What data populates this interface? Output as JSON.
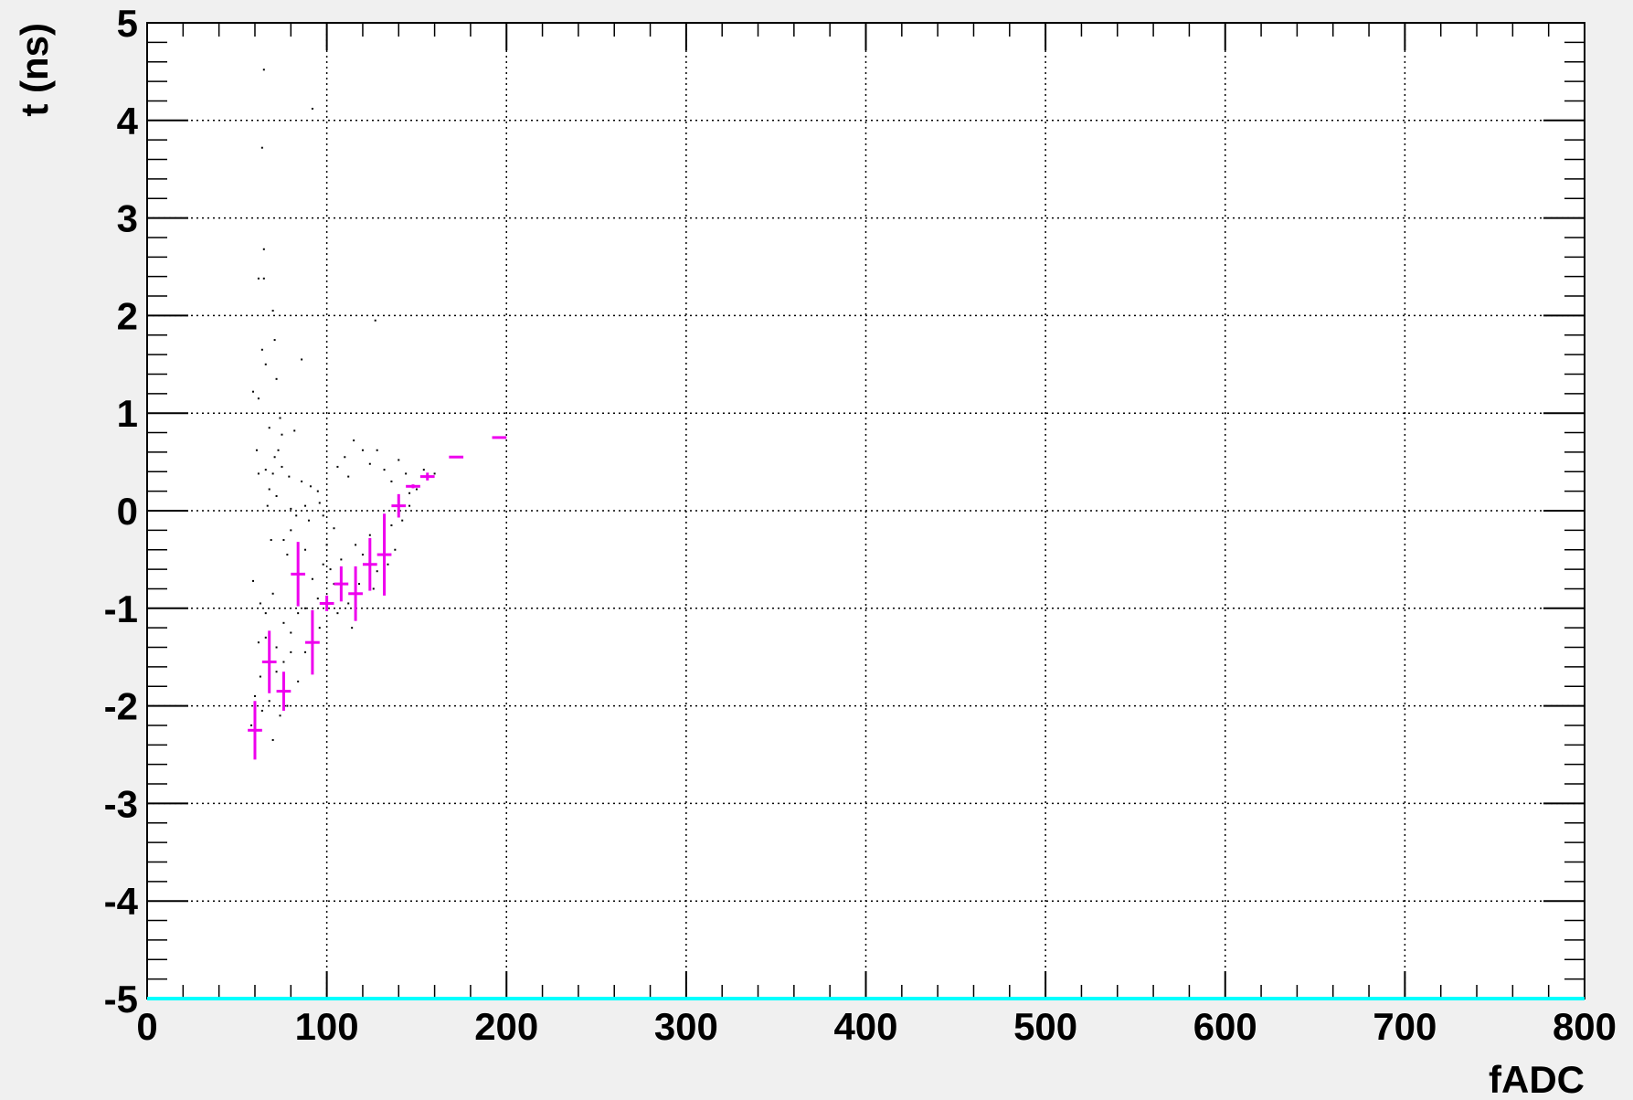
{
  "chart_data": {
    "type": "scatter",
    "title": "",
    "xlabel": "fADC",
    "ylabel": "t (ns)",
    "xlim": [
      0,
      800
    ],
    "ylim": [
      -5,
      5
    ],
    "x_ticks": [
      "0",
      "100",
      "200",
      "300",
      "400",
      "500",
      "600",
      "700",
      "800"
    ],
    "y_ticks": [
      "-5",
      "-4",
      "-3",
      "-2",
      "-1",
      "0",
      "1",
      "2",
      "3",
      "4",
      "5"
    ],
    "grid": true,
    "legend": "none",
    "colors": {
      "profile": "#ee00ee",
      "baseline": "#00ffff",
      "scatter": "#000000",
      "frame_background": "#f0f0f0",
      "plot_background": "#ffffff"
    },
    "series": [
      {
        "kind": "profile",
        "points": [
          {
            "x": 60,
            "y": -2.25,
            "err": 0.3,
            "xerr": 4
          },
          {
            "x": 68,
            "y": -1.55,
            "err": 0.32,
            "xerr": 4
          },
          {
            "x": 76,
            "y": -1.85,
            "err": 0.2,
            "xerr": 4
          },
          {
            "x": 84,
            "y": -0.65,
            "err": 0.33,
            "xerr": 4
          },
          {
            "x": 92,
            "y": -1.35,
            "err": 0.33,
            "xerr": 4
          },
          {
            "x": 100,
            "y": -0.95,
            "err": 0.08,
            "xerr": 4
          },
          {
            "x": 108,
            "y": -0.75,
            "err": 0.18,
            "xerr": 4
          },
          {
            "x": 116,
            "y": -0.85,
            "err": 0.28,
            "xerr": 4
          },
          {
            "x": 124,
            "y": -0.55,
            "err": 0.27,
            "xerr": 4
          },
          {
            "x": 132,
            "y": -0.45,
            "err": 0.42,
            "xerr": 4
          },
          {
            "x": 140,
            "y": 0.05,
            "err": 0.12,
            "xerr": 4
          },
          {
            "x": 148,
            "y": 0.25,
            "err": 0.02,
            "xerr": 4
          },
          {
            "x": 156,
            "y": 0.35,
            "err": 0.04,
            "xerr": 4
          },
          {
            "x": 172,
            "y": 0.55,
            "err": 0.0,
            "xerr": 4
          },
          {
            "x": 196,
            "y": 0.75,
            "err": 0.0,
            "xerr": 4
          }
        ]
      },
      {
        "kind": "scatter",
        "points": [
          [
            65,
            4.52
          ],
          [
            64,
            3.72
          ],
          [
            65,
            2.68
          ],
          [
            62,
            2.38
          ],
          [
            65,
            2.38
          ],
          [
            70,
            2.05
          ],
          [
            71,
            1.75
          ],
          [
            64,
            1.65
          ],
          [
            66,
            1.5
          ],
          [
            72,
            1.35
          ],
          [
            86,
            1.55
          ],
          [
            59,
            1.22
          ],
          [
            62,
            1.15
          ],
          [
            92,
            4.12
          ],
          [
            127,
            1.95
          ],
          [
            68,
            0.85
          ],
          [
            75,
            0.78
          ],
          [
            82,
            0.82
          ],
          [
            71,
            0.55
          ],
          [
            73,
            0.62
          ],
          [
            75,
            0.45
          ],
          [
            66,
            0.42
          ],
          [
            62,
            0.38
          ],
          [
            70,
            0.38
          ],
          [
            68,
            0.22
          ],
          [
            72,
            0.15
          ],
          [
            80,
            0.02
          ],
          [
            88,
            0.05
          ],
          [
            90,
            -0.1
          ],
          [
            95,
            0.2
          ],
          [
            96,
            0.08
          ],
          [
            98,
            -0.05
          ],
          [
            104,
            -0.18
          ],
          [
            110,
            0.55
          ],
          [
            106,
            0.45
          ],
          [
            112,
            0.35
          ],
          [
            115,
            0.72
          ],
          [
            120,
            0.62
          ],
          [
            124,
            0.48
          ],
          [
            128,
            0.62
          ],
          [
            132,
            0.42
          ],
          [
            136,
            0.3
          ],
          [
            140,
            0.52
          ],
          [
            144,
            0.38
          ],
          [
            146,
            0.18
          ],
          [
            150,
            0.22
          ],
          [
            154,
            0.42
          ],
          [
            160,
            0.38
          ],
          [
            76,
            -0.3
          ],
          [
            78,
            -0.45
          ],
          [
            80,
            -0.2
          ],
          [
            84,
            -0.55
          ],
          [
            88,
            -0.4
          ],
          [
            92,
            -0.7
          ],
          [
            95,
            -0.9
          ],
          [
            98,
            -0.55
          ],
          [
            100,
            -0.35
          ],
          [
            104,
            -0.75
          ],
          [
            108,
            -0.5
          ],
          [
            112,
            -0.95
          ],
          [
            116,
            -0.35
          ],
          [
            120,
            -0.45
          ],
          [
            124,
            -0.25
          ],
          [
            128,
            -0.62
          ],
          [
            132,
            -0.3
          ],
          [
            136,
            -0.15
          ],
          [
            59,
            -0.72
          ],
          [
            63,
            -0.95
          ],
          [
            66,
            -1.05
          ],
          [
            70,
            -0.85
          ],
          [
            62,
            -1.35
          ],
          [
            66,
            -1.3
          ],
          [
            72,
            -1.4
          ],
          [
            76,
            -1.15
          ],
          [
            80,
            -1.25
          ],
          [
            84,
            -1.05
          ],
          [
            88,
            -1.0
          ],
          [
            92,
            -1.15
          ],
          [
            63,
            -1.7
          ],
          [
            68,
            -1.95
          ],
          [
            72,
            -1.65
          ],
          [
            76,
            -1.55
          ],
          [
            80,
            -1.45
          ],
          [
            84,
            -1.75
          ],
          [
            88,
            -1.45
          ],
          [
            92,
            -1.55
          ],
          [
            96,
            -1.2
          ],
          [
            64,
            -2.05
          ],
          [
            70,
            -2.35
          ],
          [
            74,
            -2.1
          ],
          [
            78,
            -2.0
          ],
          [
            58,
            -2.2
          ],
          [
            60,
            -1.9
          ],
          [
            102,
            -0.6
          ],
          [
            106,
            -1.05
          ],
          [
            114,
            -1.2
          ],
          [
            118,
            -0.75
          ],
          [
            126,
            -0.8
          ],
          [
            134,
            -0.55
          ],
          [
            138,
            -0.4
          ],
          [
            142,
            -0.1
          ],
          [
            146,
            0.05
          ],
          [
            61,
            0.62
          ],
          [
            67,
            0.05
          ],
          [
            69,
            -0.3
          ],
          [
            74,
            0.95
          ],
          [
            79,
            0.35
          ],
          [
            83,
            -0.05
          ],
          [
            86,
            0.3
          ],
          [
            91,
            0.25
          ]
        ]
      },
      {
        "kind": "baseline",
        "x": [
          0,
          800
        ],
        "y": [
          -5,
          -5
        ]
      }
    ]
  }
}
